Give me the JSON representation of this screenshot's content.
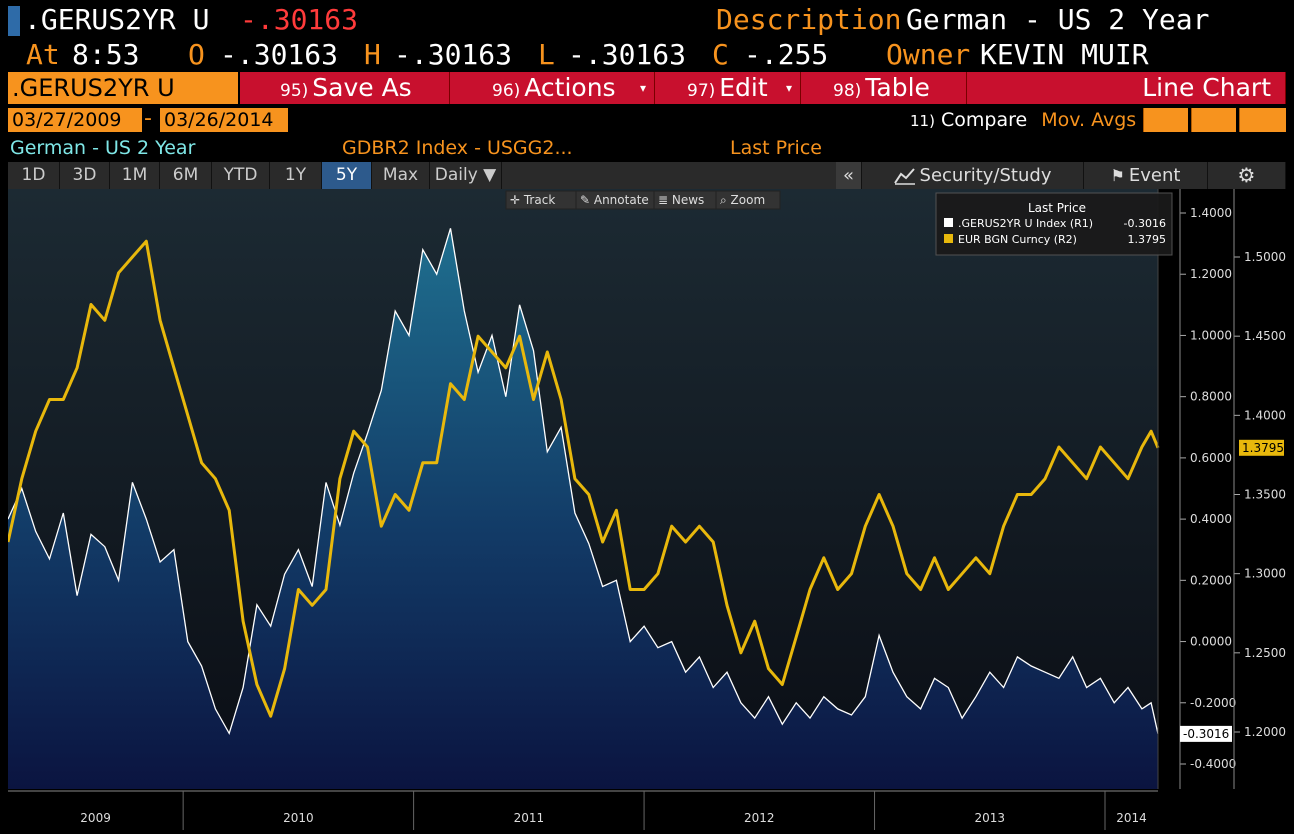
{
  "header": {
    "ticker": ".GERUS2YR U",
    "last_value": "-.30163",
    "description_label": "Description",
    "description_value": "German - US 2 Year",
    "at_label": "At",
    "time": "8:53",
    "open_label": "O",
    "open_value": "-.30163",
    "high_label": "H",
    "high_value": "-.30163",
    "low_label": "L",
    "low_value": "-.30163",
    "close_label": "C",
    "close_value": "-.255",
    "owner_label": "Owner",
    "owner_value": "KEVIN MUIR"
  },
  "toolbar": {
    "security_field": ".GERUS2YR U Index",
    "save_num": "95)",
    "save_label": "Save As",
    "actions_num": "96)",
    "actions_label": "Actions",
    "edit_num": "97)",
    "edit_label": "Edit",
    "table_num": "98)",
    "table_label": "Table",
    "chart_type": "Line Chart"
  },
  "dates": {
    "start": "03/27/2009",
    "separator": "-",
    "end": "03/26/2014"
  },
  "compare": {
    "num": "11)",
    "label": "Compare",
    "mov_avgs": "Mov. Avgs"
  },
  "info": {
    "security_name": "German - US 2 Year",
    "index_label": "GDBR2 Index - USGG2...",
    "price_field": "Last Price"
  },
  "ranges": [
    "1D",
    "3D",
    "1M",
    "6M",
    "YTD",
    "1Y",
    "5Y",
    "Max",
    "Daily ▼"
  ],
  "selected_range": "5Y",
  "right_toolbar": {
    "collapse": "«",
    "security_study": "Security/Study",
    "event": "Event"
  },
  "chart_tools": {
    "track": "Track",
    "annotate": "Annotate",
    "news": "News",
    "zoom": "Zoom"
  },
  "colors": {
    "amber": "#f7931e",
    "red": "#c8102e",
    "series1": "#ffffff",
    "series2": "#e8b80c",
    "area_top": "#1f6f8f",
    "area_bottom": "#0b1440"
  },
  "chart_data": {
    "type": "line",
    "legend": {
      "title": "Last Price",
      "placement": "top-right",
      "entries": [
        {
          "name": ".GERUS2YR U Index  (R1)",
          "value": "-0.3016",
          "color": "#ffffff"
        },
        {
          "name": "EUR BGN Curncy  (R2)",
          "value": "1.3795",
          "color": "#e8b80c"
        }
      ]
    },
    "x_labels": [
      "2009",
      "2010",
      "2011",
      "2012",
      "2013",
      "2014"
    ],
    "xlim": [
      2009.24,
      2014.23
    ],
    "axis_r1": {
      "ticks": [
        "1.4000",
        "1.2000",
        "1.0000",
        "0.8000",
        "0.6000",
        "0.4000",
        "0.2000",
        "0.0000",
        "-0.2000",
        "-0.4000"
      ],
      "ylim": [
        -0.5,
        1.4
      ],
      "last_label": "-0.3016"
    },
    "axis_r2": {
      "ticks": [
        "1.5000",
        "1.4500",
        "1.4000",
        "1.3500",
        "1.3000",
        "1.2500",
        "1.2000"
      ],
      "ylim": [
        1.18,
        1.525
      ],
      "last_label": "1.3795"
    },
    "series": [
      {
        "name": ".GERUS2YR U Index",
        "axis": "R1",
        "style": "area",
        "x": [
          2009.24,
          2009.3,
          2009.36,
          2009.42,
          2009.48,
          2009.54,
          2009.6,
          2009.66,
          2009.72,
          2009.78,
          2009.84,
          2009.9,
          2009.96,
          2010.02,
          2010.08,
          2010.14,
          2010.2,
          2010.26,
          2010.32,
          2010.38,
          2010.44,
          2010.5,
          2010.56,
          2010.62,
          2010.68,
          2010.74,
          2010.8,
          2010.86,
          2010.92,
          2010.98,
          2011.04,
          2011.1,
          2011.16,
          2011.22,
          2011.28,
          2011.34,
          2011.4,
          2011.46,
          2011.52,
          2011.58,
          2011.64,
          2011.7,
          2011.76,
          2011.82,
          2011.88,
          2011.94,
          2012.0,
          2012.06,
          2012.12,
          2012.18,
          2012.24,
          2012.3,
          2012.36,
          2012.42,
          2012.48,
          2012.54,
          2012.6,
          2012.66,
          2012.72,
          2012.78,
          2012.84,
          2012.9,
          2012.96,
          2013.02,
          2013.08,
          2013.14,
          2013.2,
          2013.26,
          2013.32,
          2013.38,
          2013.44,
          2013.5,
          2013.56,
          2013.62,
          2013.68,
          2013.74,
          2013.8,
          2013.86,
          2013.92,
          2013.98,
          2014.04,
          2014.1,
          2014.16,
          2014.2,
          2014.23
        ],
        "values": [
          0.4,
          0.5,
          0.36,
          0.27,
          0.42,
          0.15,
          0.35,
          0.31,
          0.2,
          0.52,
          0.4,
          0.26,
          0.3,
          0.0,
          -0.08,
          -0.22,
          -0.3,
          -0.15,
          0.12,
          0.05,
          0.22,
          0.3,
          0.18,
          0.52,
          0.38,
          0.55,
          0.68,
          0.82,
          1.08,
          1.0,
          1.28,
          1.2,
          1.35,
          1.08,
          0.88,
          1.0,
          0.8,
          1.1,
          0.95,
          0.62,
          0.7,
          0.42,
          0.32,
          0.18,
          0.2,
          0.0,
          0.05,
          -0.02,
          0.0,
          -0.1,
          -0.05,
          -0.15,
          -0.1,
          -0.2,
          -0.25,
          -0.18,
          -0.27,
          -0.2,
          -0.25,
          -0.18,
          -0.22,
          -0.24,
          -0.18,
          0.02,
          -0.1,
          -0.18,
          -0.22,
          -0.12,
          -0.15,
          -0.25,
          -0.18,
          -0.1,
          -0.15,
          -0.05,
          -0.08,
          -0.1,
          -0.12,
          -0.05,
          -0.15,
          -0.12,
          -0.2,
          -0.15,
          -0.22,
          -0.2,
          -0.3016
        ]
      },
      {
        "name": "EUR BGN Curncy",
        "axis": "R2",
        "style": "line",
        "x": [
          2009.24,
          2009.3,
          2009.36,
          2009.42,
          2009.48,
          2009.54,
          2009.6,
          2009.66,
          2009.72,
          2009.78,
          2009.84,
          2009.9,
          2009.96,
          2010.02,
          2010.08,
          2010.14,
          2010.2,
          2010.26,
          2010.32,
          2010.38,
          2010.44,
          2010.5,
          2010.56,
          2010.62,
          2010.68,
          2010.74,
          2010.8,
          2010.86,
          2010.92,
          2010.98,
          2011.04,
          2011.1,
          2011.16,
          2011.22,
          2011.28,
          2011.34,
          2011.4,
          2011.46,
          2011.52,
          2011.58,
          2011.64,
          2011.7,
          2011.76,
          2011.82,
          2011.88,
          2011.94,
          2012.0,
          2012.06,
          2012.12,
          2012.18,
          2012.24,
          2012.3,
          2012.36,
          2012.42,
          2012.48,
          2012.54,
          2012.6,
          2012.66,
          2012.72,
          2012.78,
          2012.84,
          2012.9,
          2012.96,
          2013.02,
          2013.08,
          2013.14,
          2013.2,
          2013.26,
          2013.32,
          2013.38,
          2013.44,
          2013.5,
          2013.56,
          2013.62,
          2013.68,
          2013.74,
          2013.8,
          2013.86,
          2013.92,
          2013.98,
          2014.04,
          2014.1,
          2014.16,
          2014.2,
          2014.23
        ],
        "values": [
          1.32,
          1.36,
          1.39,
          1.41,
          1.41,
          1.43,
          1.47,
          1.46,
          1.49,
          1.5,
          1.51,
          1.46,
          1.43,
          1.4,
          1.37,
          1.36,
          1.34,
          1.27,
          1.23,
          1.21,
          1.24,
          1.29,
          1.28,
          1.29,
          1.36,
          1.39,
          1.38,
          1.33,
          1.35,
          1.34,
          1.37,
          1.37,
          1.42,
          1.41,
          1.45,
          1.44,
          1.43,
          1.45,
          1.41,
          1.44,
          1.41,
          1.36,
          1.35,
          1.32,
          1.34,
          1.29,
          1.29,
          1.3,
          1.33,
          1.32,
          1.33,
          1.32,
          1.28,
          1.25,
          1.27,
          1.24,
          1.23,
          1.26,
          1.29,
          1.31,
          1.29,
          1.3,
          1.33,
          1.35,
          1.33,
          1.3,
          1.29,
          1.31,
          1.29,
          1.3,
          1.31,
          1.3,
          1.33,
          1.35,
          1.35,
          1.36,
          1.38,
          1.37,
          1.36,
          1.38,
          1.37,
          1.36,
          1.38,
          1.39,
          1.3795
        ]
      }
    ]
  }
}
